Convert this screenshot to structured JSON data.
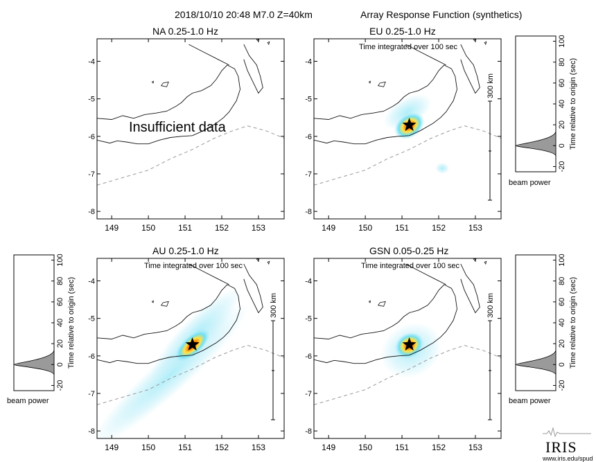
{
  "header": {
    "event": "2018/10/10 20:48  M7.0  Z=40km",
    "product": "Array Response Function (synthetics)"
  },
  "panels": [
    {
      "id": "NA",
      "label": "NA  0.25-1.0 Hz",
      "integrated": "",
      "note": "Insufficient data",
      "scalebar": ""
    },
    {
      "id": "EU",
      "label": "EU  0.25-1.0 Hz",
      "integrated": "Time integrated over 100 sec",
      "note": "",
      "scalebar": "300 km"
    },
    {
      "id": "AU",
      "label": "AU  0.25-1.0 Hz",
      "integrated": "Time integrated over 100 sec",
      "note": "",
      "scalebar": "300 km"
    },
    {
      "id": "GSN",
      "label": "GSN  0.05-0.25 Hz",
      "integrated": "Time integrated over 100 sec",
      "note": "",
      "scalebar": "300 km"
    }
  ],
  "beam": {
    "xlabel": "beam power",
    "ylabel": "Time relative to origin (sec)",
    "ticks": [
      -20,
      0,
      20,
      40,
      60,
      80,
      100
    ]
  },
  "chart_data": {
    "type": "heatmap",
    "x_ticks": [
      149,
      150,
      151,
      152,
      153
    ],
    "y_ticks": [
      -4,
      -5,
      -6,
      -7,
      -8
    ],
    "xlim": [
      148.6,
      153.7
    ],
    "ylim": [
      -8.2,
      -3.4
    ],
    "epicenter": {
      "lon": 151.2,
      "lat": -5.7
    },
    "colors": {
      "low": "#b3ecf8",
      "mid": "#6fe0f4",
      "high": "#ffe34a",
      "peak": "#ff2a00"
    }
  },
  "logo": {
    "text": "IRIS",
    "url": "www.iris.edu/spud"
  }
}
